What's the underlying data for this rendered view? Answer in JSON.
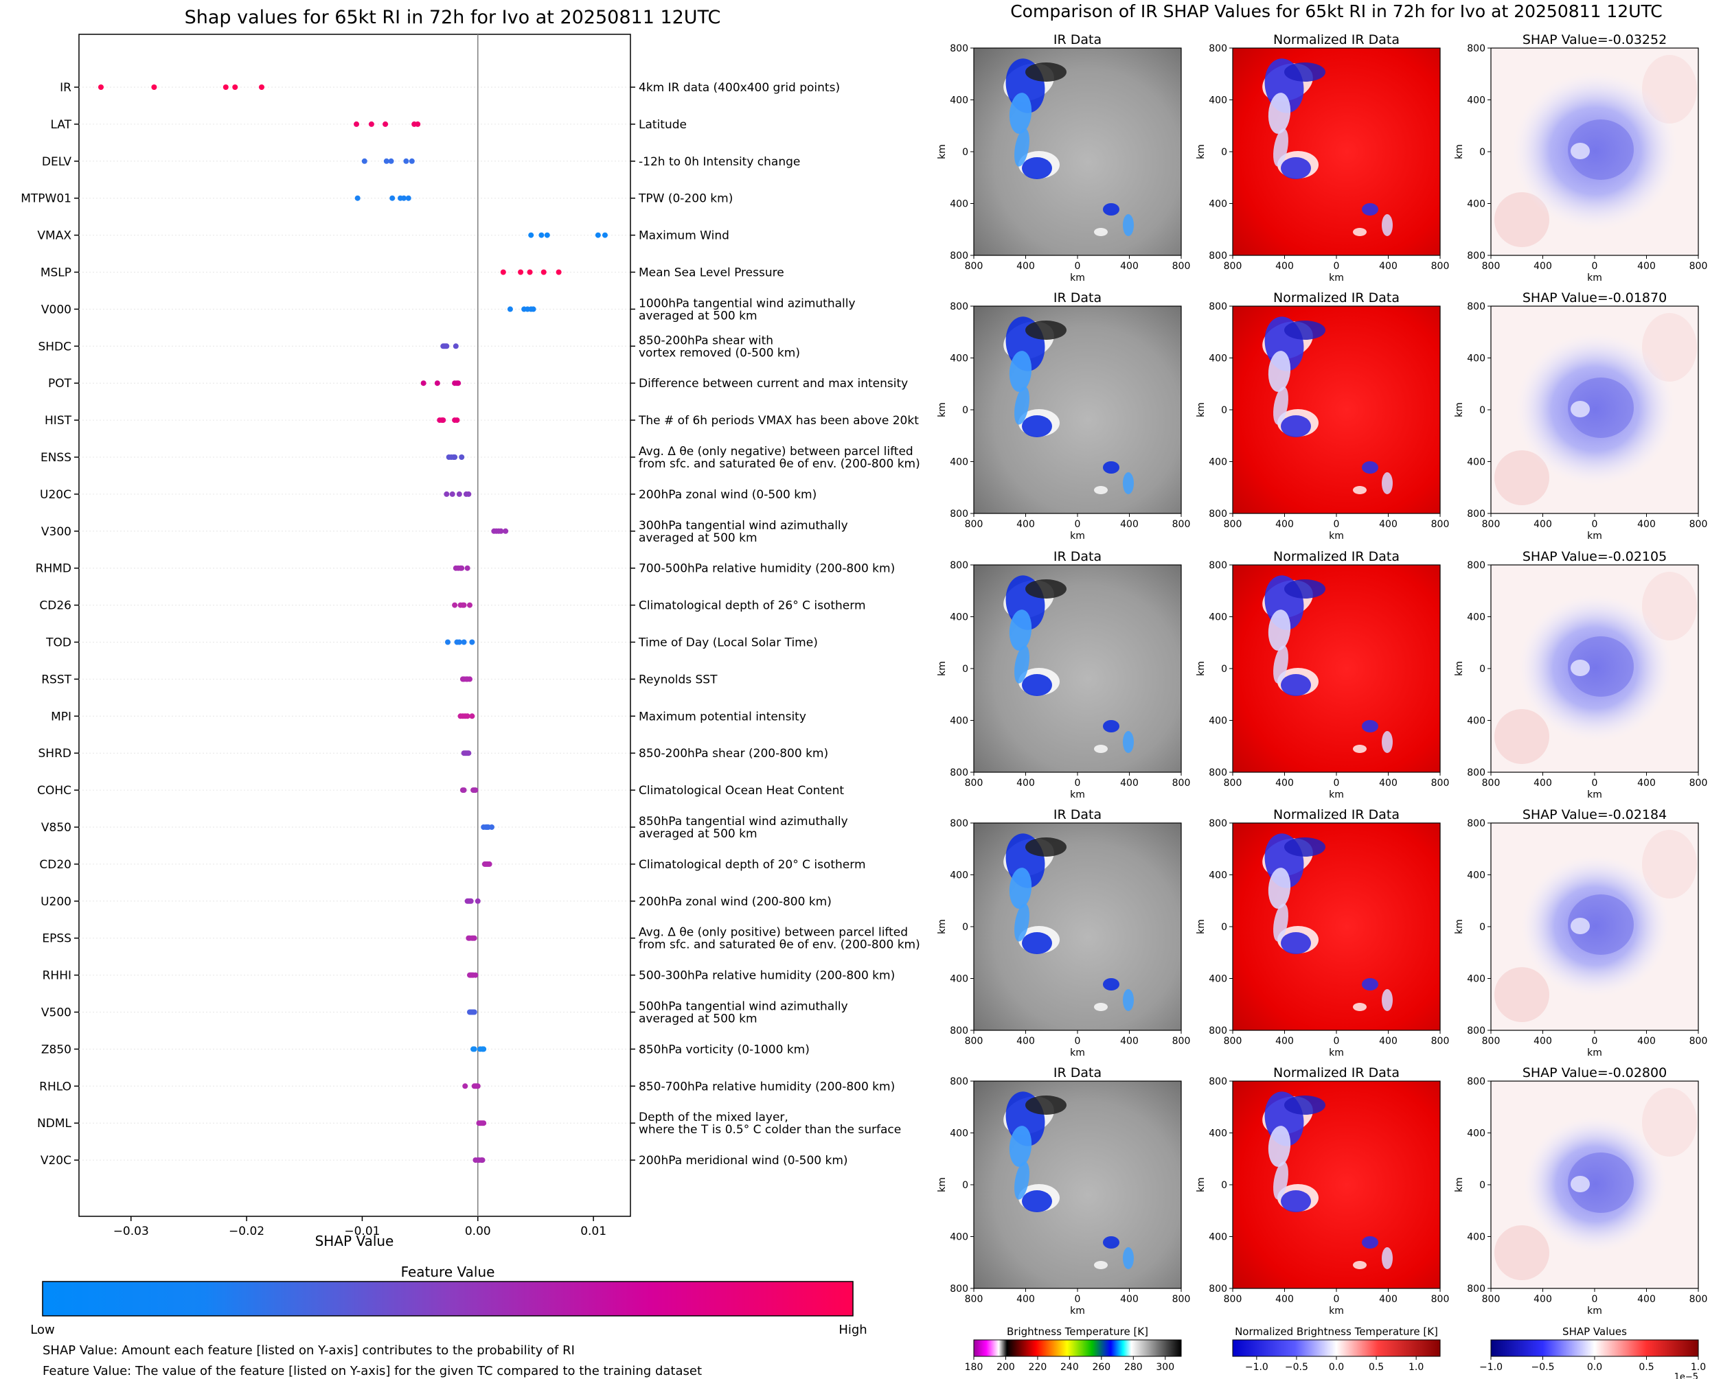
{
  "colors": {
    "low": "#008afb",
    "mid": "#7a38c9",
    "high": "#ff0052",
    "axis": "#000000",
    "zero_line": "#808080",
    "row_grid": "#e6e6e6"
  },
  "chart_data": [
    {
      "type": "scatter",
      "subtype": "shap-beeswarm",
      "title": "Shap values for 65kt RI in 72h for Ivo at 20250811 12UTC",
      "xlabel": "SHAP Value",
      "xlim": [
        -0.0345,
        0.0132
      ],
      "xticks": [
        {
          "value": -0.03,
          "label": "−0.03"
        },
        {
          "value": -0.02,
          "label": "−0.02"
        },
        {
          "value": -0.01,
          "label": "−0.01"
        },
        {
          "value": 0.0,
          "label": "0.00"
        },
        {
          "value": 0.01,
          "label": "0.01"
        }
      ],
      "features": [
        {
          "name": "IR",
          "description": [
            "4km IR data (400x400 grid points)"
          ],
          "color": "#ff0056",
          "points": [
            -0.0326,
            -0.028,
            -0.0218,
            -0.021,
            -0.0187
          ]
        },
        {
          "name": "LAT",
          "description": [
            "Latitude"
          ],
          "color": "#f2006a",
          "points": [
            -0.0105,
            -0.0092,
            -0.008,
            -0.0055,
            -0.0052
          ]
        },
        {
          "name": "DELV",
          "description": [
            "-12h to 0h Intensity change"
          ],
          "color": "#3a6fe8",
          "points": [
            -0.0098,
            -0.0079,
            -0.0075,
            -0.0062,
            -0.0057
          ]
        },
        {
          "name": "MTPW01",
          "description": [
            "TPW (0-200 km)"
          ],
          "color": "#1a82f4",
          "points": [
            -0.0104,
            -0.0074,
            -0.0067,
            -0.0064,
            -0.006
          ]
        },
        {
          "name": "VMAX",
          "description": [
            "Maximum Wind"
          ],
          "color": "#0f86f7",
          "points": [
            0.0046,
            0.0055,
            0.006,
            0.0104,
            0.011
          ]
        },
        {
          "name": "MSLP",
          "description": [
            "Mean Sea Level Pressure"
          ],
          "color": "#ff0058",
          "points": [
            0.0022,
            0.0037,
            0.0045,
            0.0057,
            0.007
          ]
        },
        {
          "name": "V000",
          "description": [
            "1000hPa tangential wind azimuthally",
            "averaged at 500 km"
          ],
          "color": "#1584f5",
          "points": [
            0.0028,
            0.004,
            0.0043,
            0.0046,
            0.0048
          ]
        },
        {
          "name": "SHDC",
          "description": [
            "850-200hPa shear with",
            "vortex removed (0-500 km)"
          ],
          "color": "#6250d0",
          "points": [
            -0.003,
            -0.0029,
            -0.0028,
            -0.0027,
            -0.0019
          ]
        },
        {
          "name": "POT",
          "description": [
            "Difference between current and max intensity"
          ],
          "color": "#d4008a",
          "points": [
            -0.0047,
            -0.0035,
            -0.002,
            -0.0018,
            -0.0017
          ]
        },
        {
          "name": "HIST",
          "description": [
            "The # of 6h periods VMAX has been above 20kt"
          ],
          "color": "#e8007a",
          "points": [
            -0.0033,
            -0.0031,
            -0.003,
            -0.002,
            -0.0018
          ]
        },
        {
          "name": "ENSS",
          "description": [
            "Avg. Δ θe (only negative) between parcel lifted",
            "from sfc. and saturated θe of env. (200-800 km)"
          ],
          "color": "#5c54d2",
          "points": [
            -0.0025,
            -0.0023,
            -0.0021,
            -0.002,
            -0.0014
          ]
        },
        {
          "name": "U20C",
          "description": [
            "200hPa zonal wind (0-500 km)"
          ],
          "color": "#8a3ec0",
          "points": [
            -0.0027,
            -0.0022,
            -0.0016,
            -0.001,
            -0.0008
          ]
        },
        {
          "name": "V300",
          "description": [
            "300hPa tangential wind azimuthally",
            "averaged at 500 km"
          ],
          "color": "#9e34b8",
          "points": [
            0.0014,
            0.0016,
            0.0018,
            0.002,
            0.0024
          ]
        },
        {
          "name": "RHMD",
          "description": [
            "700-500hPa relative humidity (200-800 km)"
          ],
          "color": "#a62fb2",
          "points": [
            -0.0019,
            -0.0017,
            -0.0015,
            -0.0014,
            -0.0009
          ]
        },
        {
          "name": "CD26",
          "description": [
            "Climatological depth of 26° C isotherm"
          ],
          "color": "#b82aa8",
          "points": [
            -0.002,
            -0.0015,
            -0.0013,
            -0.0012,
            -0.0007
          ]
        },
        {
          "name": "TOD",
          "description": [
            "Time of Day (Local Solar Time)"
          ],
          "color": "#1f80f2",
          "points": [
            -0.0026,
            -0.0018,
            -0.0016,
            -0.0012,
            -0.0005
          ]
        },
        {
          "name": "RSST",
          "description": [
            "Reynolds SST"
          ],
          "color": "#b02aae",
          "points": [
            -0.0013,
            -0.0012,
            -0.001,
            -0.0009,
            -0.0007
          ]
        },
        {
          "name": "MPI",
          "description": [
            "Maximum potential intensity"
          ],
          "color": "#c9209e",
          "points": [
            -0.0015,
            -0.0013,
            -0.0011,
            -0.0009,
            -0.0005
          ]
        },
        {
          "name": "SHRD",
          "description": [
            "850-200hPa shear (200-800 km)"
          ],
          "color": "#8d3ec0",
          "points": [
            -0.0012,
            -0.0011,
            -0.001,
            -0.0009,
            -0.0008
          ]
        },
        {
          "name": "COHC",
          "description": [
            "Climatological Ocean Heat Content"
          ],
          "color": "#a830b0",
          "points": [
            -0.0013,
            -0.0012,
            -0.0004,
            -0.0003,
            -0.0002
          ]
        },
        {
          "name": "V850",
          "description": [
            "850hPa tangential wind azimuthally",
            "averaged at 500 km"
          ],
          "color": "#3a6de8",
          "points": [
            0.0005,
            0.0007,
            0.0008,
            0.0009,
            0.0012
          ]
        },
        {
          "name": "CD20",
          "description": [
            "Climatological depth of 20° C isotherm"
          ],
          "color": "#b02aae",
          "points": [
            0.0006,
            0.0007,
            0.0008,
            0.0009,
            0.001
          ]
        },
        {
          "name": "U200",
          "description": [
            "200hPa zonal wind (200-800 km)"
          ],
          "color": "#9a35ba",
          "points": [
            -0.0009,
            -0.0008,
            -0.0007,
            -0.0006,
            0.0
          ]
        },
        {
          "name": "EPSS",
          "description": [
            "Avg. Δ θe (only positive) between parcel lifted",
            "from sfc. and saturated θe of env. (200-800 km)"
          ],
          "color": "#b02aae",
          "points": [
            -0.0008,
            -0.0007,
            -0.0005,
            -0.0004,
            -0.0003
          ]
        },
        {
          "name": "RHHI",
          "description": [
            "500-300hPa relative humidity (200-800 km)"
          ],
          "color": "#b02aae",
          "points": [
            -0.0007,
            -0.0006,
            -0.0005,
            -0.0004,
            -0.0002
          ]
        },
        {
          "name": "V500",
          "description": [
            "500hPa tangential wind azimuthally",
            "averaged at 500 km"
          ],
          "color": "#4a62e0",
          "points": [
            -0.0007,
            -0.0006,
            -0.0005,
            -0.0004,
            -0.0003
          ]
        },
        {
          "name": "Z850",
          "description": [
            "850hPa vorticity (0-1000 km)"
          ],
          "color": "#168cf5",
          "points": [
            -0.0004,
            -0.0003,
            0.0002,
            0.0004,
            0.0005
          ]
        },
        {
          "name": "RHLO",
          "description": [
            "850-700hPa relative humidity (200-800 km)"
          ],
          "color": "#b02aae",
          "points": [
            -0.0011,
            -0.0003,
            -0.0002,
            -0.0001,
            0.0
          ]
        },
        {
          "name": "NDML",
          "description": [
            "Depth of the mixed layer,",
            "where the T is 0.5° C colder than the surface"
          ],
          "color": "#b02aae",
          "points": [
            0.0001,
            0.0002,
            0.0003,
            0.0004,
            0.0005
          ]
        },
        {
          "name": "V20C",
          "description": [
            "200hPa meridional wind (0-500 km)"
          ],
          "color": "#a62fb2",
          "points": [
            -0.0002,
            0.0,
            0.0001,
            0.0003,
            0.0004
          ]
        }
      ]
    },
    {
      "type": "heatmap",
      "title": "Comparison of IR SHAP Values for 65kt RI in 72h for Ivo at 20250811 12UTC",
      "column_titles": [
        "IR Data",
        "Normalized IR Data"
      ],
      "row_shap_titles": [
        "SHAP Value=-0.03252",
        "SHAP Value=-0.01870",
        "SHAP Value=-0.02105",
        "SHAP Value=-0.02184",
        "SHAP Value=-0.02800"
      ],
      "xlabel": "km",
      "ylabel": "km",
      "axis_ticks": [
        "800",
        "400",
        "0",
        "400",
        "800"
      ],
      "colorbars": [
        {
          "label": "Brightness Temperature [K]",
          "range": [
            180,
            310
          ],
          "ticks": [
            "180",
            "200",
            "220",
            "240",
            "260",
            "280",
            "300"
          ]
        },
        {
          "label": "Normalized Brightness Temperature [K]",
          "range": [
            -1.3,
            1.3
          ],
          "ticks": [
            "−1.0",
            "−0.5",
            "0.0",
            "0.5",
            "1.0"
          ]
        },
        {
          "label": "SHAP Values",
          "range": [
            -1.0,
            1.0
          ],
          "ticks": [
            "−1.0",
            "−0.5",
            "0.0",
            "0.5",
            "1.0"
          ],
          "scale_label": "1e−5"
        }
      ]
    }
  ],
  "legend": {
    "title": "Feature Value",
    "low": "Low",
    "high": "High"
  },
  "footnotes": [
    "SHAP Value: Amount each feature [listed on Y-axis] contributes to the probability of RI",
    "Feature Value: The value of the feature [listed on Y-axis] for the given TC compared to the training dataset"
  ]
}
